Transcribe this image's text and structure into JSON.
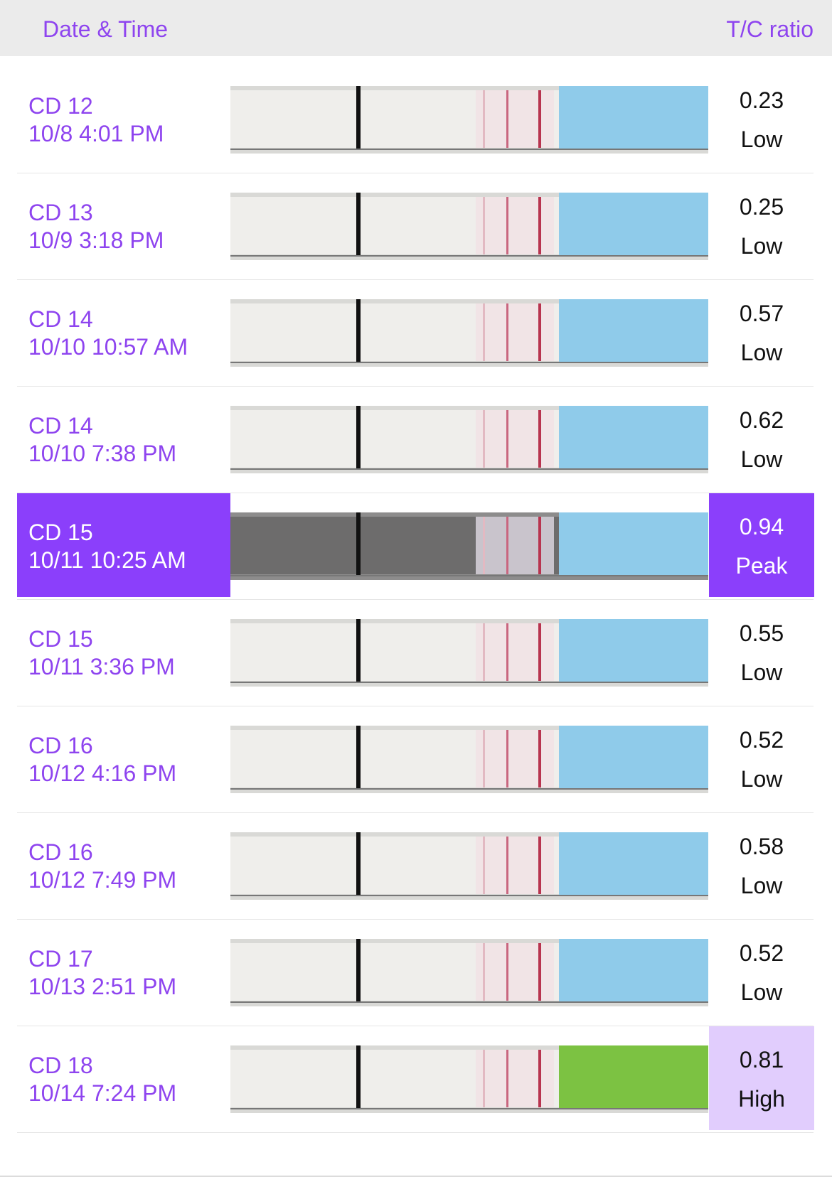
{
  "header": {
    "left": "Date & Time",
    "right": "T/C ratio"
  },
  "rows": [
    {
      "cycle_day": "CD 12",
      "datetime": "10/8 4:01 PM",
      "ratio": "0.23",
      "level": "Low",
      "strip_color": "#8fcbea"
    },
    {
      "cycle_day": "CD 13",
      "datetime": "10/9 3:18 PM",
      "ratio": "0.25",
      "level": "Low",
      "strip_color": "#8fcbea"
    },
    {
      "cycle_day": "CD 14",
      "datetime": "10/10 10:57 AM",
      "ratio": "0.57",
      "level": "Low",
      "strip_color": "#8fcbea"
    },
    {
      "cycle_day": "CD 14",
      "datetime": "10/10 7:38 PM",
      "ratio": "0.62",
      "level": "Low",
      "strip_color": "#8fcbea"
    },
    {
      "cycle_day": "CD 15",
      "datetime": "10/11 10:25 AM",
      "ratio": "0.94",
      "level": "Peak",
      "strip_color": "#8fcbea",
      "highlight": "#8b3ffb",
      "text_color": "#ffffff"
    },
    {
      "cycle_day": "CD 15",
      "datetime": "10/11 3:36 PM",
      "ratio": "0.55",
      "level": "Low",
      "strip_color": "#8fcbea"
    },
    {
      "cycle_day": "CD 16",
      "datetime": "10/12 4:16 PM",
      "ratio": "0.52",
      "level": "Low",
      "strip_color": "#8fcbea"
    },
    {
      "cycle_day": "CD 16",
      "datetime": "10/12 7:49 PM",
      "ratio": "0.58",
      "level": "Low",
      "strip_color": "#8fcbea"
    },
    {
      "cycle_day": "CD 17",
      "datetime": "10/13 2:51 PM",
      "ratio": "0.52",
      "level": "Low",
      "strip_color": "#8fcbea"
    },
    {
      "cycle_day": "CD 18",
      "datetime": "10/14 7:24 PM",
      "ratio": "0.81",
      "level": "High",
      "strip_color": "#7cc242",
      "highlight_ratio": "#e1cdfd"
    }
  ]
}
